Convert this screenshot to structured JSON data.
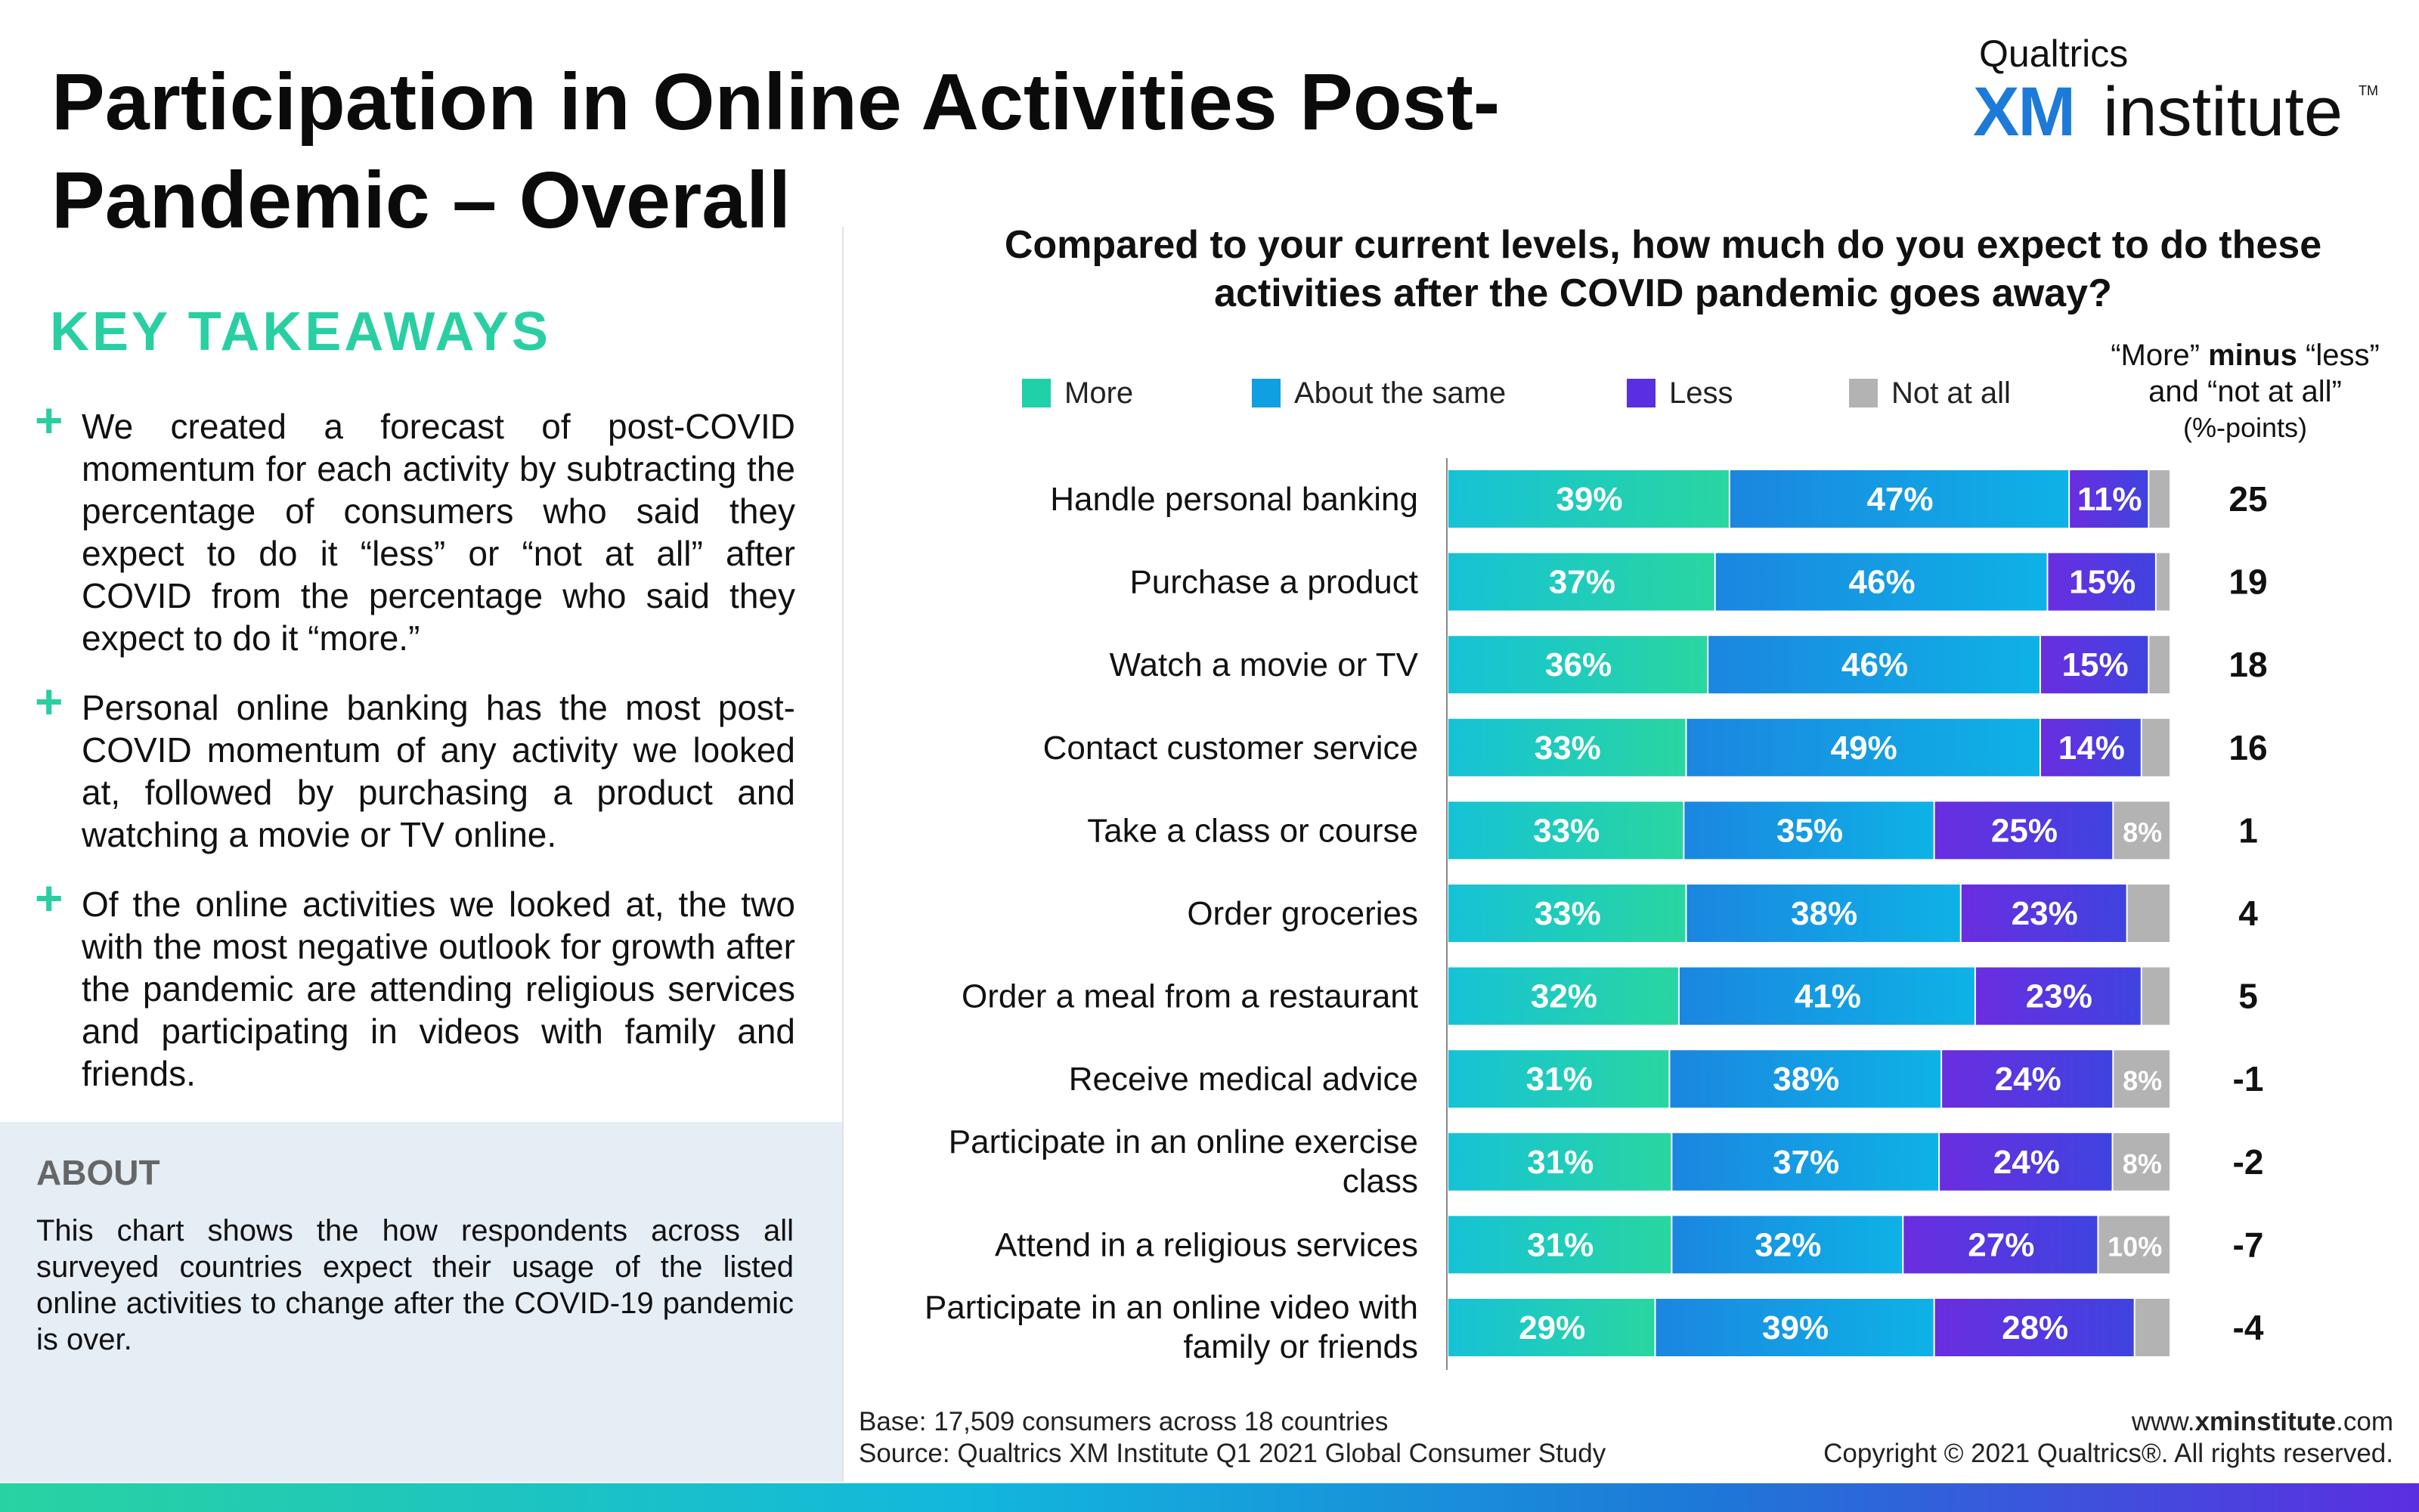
{
  "title": "Participation in Online Activities Post-Pandemic – Overall",
  "logo": {
    "top": "Qualtrics",
    "xm": "XM",
    "institute": "institute",
    "tm": "TM"
  },
  "key_takeaways": {
    "heading": "KEY TAKEAWAYS",
    "items": [
      "We created a forecast of post-COVID momentum for each activity by subtracting the percentage of consumers who said they expect to do it “less” or “not at all” after COVID from the percentage who said they expect to do it “more.”",
      "Personal online banking has the most post-COVID momentum of any activity we looked at, followed by purchasing a product and watching a movie or TV online.",
      "Of the online activities we looked at, the two with the most negative outlook for growth after the pandemic are attending religious services and participating in videos with family and friends."
    ]
  },
  "about": {
    "heading": "ABOUT",
    "text": "This chart shows the how respondents across all surveyed countries expect their usage of the listed online activities to change after the COVID-19 pandemic is over."
  },
  "chart_data": {
    "type": "bar",
    "orientation": "horizontal",
    "stacked": true,
    "title": "Compared to your current levels, how much do you expect to do these activities after the COVID pandemic goes away?",
    "legend_placement": "top",
    "categories": [
      "Handle personal banking",
      "Purchase a product",
      "Watch a movie or TV",
      "Contact customer service",
      "Take a class or course",
      "Order groceries",
      "Order a meal from a restaurant",
      "Receive medical advice",
      "Participate in an online exercise class",
      "Attend in a religious services",
      "Participate in an online video with family or friends"
    ],
    "category_lines": [
      [
        "Handle personal banking"
      ],
      [
        "Purchase a product"
      ],
      [
        "Watch a movie or TV"
      ],
      [
        "Contact customer service"
      ],
      [
        "Take a class or course"
      ],
      [
        "Order groceries"
      ],
      [
        "Order a meal from a restaurant"
      ],
      [
        "Receive medical advice"
      ],
      [
        "Participate in an online exercise",
        "class"
      ],
      [
        "Attend in a religious services"
      ],
      [
        "Participate in an online video with",
        "family or friends"
      ]
    ],
    "series": [
      {
        "name": "More",
        "color": "#1fd0a8",
        "values": [
          39,
          37,
          36,
          33,
          33,
          33,
          32,
          31,
          31,
          31,
          29
        ]
      },
      {
        "name": "About the same",
        "color": "#109fe0",
        "values": [
          47,
          46,
          46,
          49,
          35,
          38,
          41,
          38,
          37,
          32,
          39
        ]
      },
      {
        "name": "Less",
        "color": "#5a2fe2",
        "values": [
          11,
          15,
          15,
          14,
          25,
          23,
          23,
          24,
          24,
          27,
          28
        ]
      },
      {
        "name": "Not at all",
        "color": "#b3b3b3",
        "values": [
          3,
          2,
          3,
          4,
          8,
          6,
          4,
          8,
          8,
          10,
          5
        ]
      }
    ],
    "data_labels": [
      [
        "39%",
        "47%",
        "11%",
        ""
      ],
      [
        "37%",
        "46%",
        "15%",
        ""
      ],
      [
        "36%",
        "46%",
        "15%",
        ""
      ],
      [
        "33%",
        "49%",
        "14%",
        ""
      ],
      [
        "33%",
        "35%",
        "25%",
        "8%"
      ],
      [
        "33%",
        "38%",
        "23%",
        ""
      ],
      [
        "32%",
        "41%",
        "23%",
        ""
      ],
      [
        "31%",
        "38%",
        "24%",
        "8%"
      ],
      [
        "31%",
        "37%",
        "24%",
        "8%"
      ],
      [
        "31%",
        "32%",
        "27%",
        "10%"
      ],
      [
        "29%",
        "39%",
        "28%",
        ""
      ]
    ],
    "difference": {
      "header_line1_pre": "“More” ",
      "header_line1_bold": "minus",
      "header_line1_post": " “less”",
      "header_line2": "and “not at all”",
      "header_line3": "(%-points)",
      "values": [
        25,
        19,
        18,
        16,
        1,
        4,
        5,
        -1,
        -2,
        -7,
        -4
      ]
    },
    "xlim": [
      0,
      100
    ]
  },
  "footer": {
    "base": "Base: 17,509 consumers across 18 countries",
    "source": "Source: Qualtrics XM Institute Q1 2021 Global Consumer Study",
    "site_pre": "www.",
    "site_bold": "xminstitute",
    "site_post": ".com",
    "copyright": "Copyright © 2021 Qualtrics®. All rights reserved."
  }
}
